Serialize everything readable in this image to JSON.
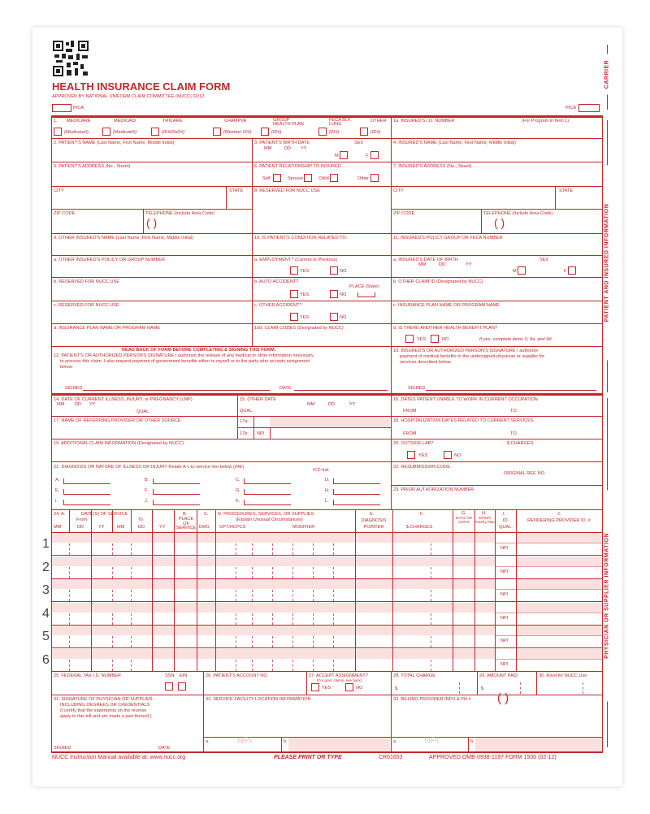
{
  "title": "HEALTH INSURANCE CLAIM FORM",
  "approved": "APPROVED BY NATIONAL UNIFORM CLAIM COMMITTEE (NUCC) 02/12",
  "pica": "PICA",
  "side": {
    "carrier": "CARRIER",
    "patient": "PATIENT AND INSURED INFORMATION",
    "physician": "PHYSICIAN OR SUPPLIER INFORMATION"
  },
  "colors": {
    "form_red": "#c0282d",
    "shade_pink": "#fbe0e0"
  },
  "item1": {
    "label": "1.",
    "programs": [
      {
        "name": "MEDICARE",
        "sub": "(Medicare#)"
      },
      {
        "name": "MEDICAID",
        "sub": "(Medicaid#)"
      },
      {
        "name": "TRICARE",
        "sub": "(ID#/DoD#)"
      },
      {
        "name": "CHAMPVA",
        "sub": "(Member ID#)"
      },
      {
        "name": "GROUP HEALTH PLAN",
        "sub": "(ID#)"
      },
      {
        "name": "FECA BLK LUNG",
        "sub": "(ID#)"
      },
      {
        "name": "OTHER",
        "sub": "(ID#)"
      }
    ]
  },
  "l": {
    "1a": "1a. INSURED'S I.D. NUMBER",
    "1a_note": "(For Program in Item 1)",
    "2": "2. PATIENT'S NAME (Last Name, First Name, Middle Initial)",
    "3": "3. PATIENT'S BIRTH DATE",
    "mm": "MM",
    "dd": "DD",
    "yy": "YY",
    "sex": "SEX",
    "m": "M",
    "f": "F",
    "4": "4. INSURED'S NAME (Last Name, First Name, Middle Initial)",
    "5": "5. PATIENT'S ADDRESS (No., Street)",
    "6": "6. PATIENT RELATIONSHIP TO INSURED",
    "self": "Self",
    "spouse": "Spouse",
    "child": "Child",
    "other": "Other",
    "7": "7. INSURED'S ADDRESS (No., Street)",
    "city": "CITY",
    "state": "STATE",
    "8": "8. RESERVED FOR NUCC USE",
    "zip": "ZIP CODE",
    "tel": "TELEPHONE (Include Area Code)",
    "paren": "(     )",
    "9": "9. OTHER INSURED'S NAME (Last Name, First Name, Middle Initial)",
    "10": "10. IS PATIENT'S CONDITION RELATED TO:",
    "11": "11. INSURED'S POLICY GROUP OR FECA NUMBER",
    "9a": "a. OTHER INSURED'S POLICY OR GROUP NUMBER",
    "10a": "a. EMPLOYMENT? (Current or Previous)",
    "yes": "YES",
    "no": "NO",
    "11a": "a. INSURED'S DATE OF BIRTH",
    "9b": "b. RESERVED FOR NUCC USE",
    "10b": "b. AUTO ACCIDENT?",
    "place": "PLACE (State)",
    "11b": "b. OTHER CLAIM ID (Designated by NUCC)",
    "9c": "c. RESERVED FOR NUCC USE",
    "10c": "c. OTHER ACCIDENT?",
    "11c": "c. INSURANCE PLAN NAME OR PROGRAM NAME",
    "9d": "d. INSURANCE PLAN NAME OR PROGRAM NAME",
    "10d": "10d. CLAIM CODES (Designated by NUCC)",
    "11d": "d. IS THERE ANOTHER HEALTH BENEFIT PLAN?",
    "11d_note": "If yes, complete items 9, 9a, and 9d.",
    "readback": "READ BACK OF FORM BEFORE COMPLETING & SIGNING THIS FORM.",
    "12": "12. PATIENT'S OR AUTHORIZED PERSON'S SIGNATURE  I authorize the release of any medical or other information necessary",
    "12b": "to process this claim. I also request payment of government benefits either to myself or to the party who accepts assignment",
    "12c": "below.",
    "signed": "SIGNED",
    "date": "DATE",
    "13": "13. INSURED'S OR AUTHORIZED PERSON'S SIGNATURE  I authorize",
    "13b": "payment of medical benefits to the undersigned physician or supplier for",
    "13c": "services described below.",
    "14": "14. DATE OF CURRENT ILLNESS, INJURY, or PREGNANCY (LMP)",
    "qual": "QUAL.",
    "15": "15. OTHER DATE",
    "16": "16. DATES PATIENT UNABLE TO WORK IN CURRENT OCCUPATION",
    "from": "FROM",
    "to": "TO",
    "17": "17. NAME OF REFERRING PROVIDER OR OTHER SOURCE",
    "17a": "17a.",
    "17b": "17b.",
    "npi": "NPI",
    "18": "18. HOSPITALIZATION DATES RELATED TO CURRENT SERVICES",
    "19": "19. ADDITIONAL CLAIM INFORMATION (Designated by NUCC)",
    "20": "20. OUTSIDE LAB?",
    "charges": "$ CHARGES",
    "21": "21. DIAGNOSIS OR NATURE OF ILLNESS OR INJURY  Relate A-L to service line below (24E)",
    "icd": "ICD Ind.",
    "22": "22. RESUBMISSION CODE",
    "orig": "ORIGINAL REF. NO.",
    "23": "23. PRIOR AUTHORIZATION NUMBER",
    "25": "25. FEDERAL TAX I.D. NUMBER",
    "ssn": "SSN",
    "ein": "EIN",
    "26": "26. PATIENT'S ACCOUNT NO.",
    "27": "27. ACCEPT ASSIGNMENT?",
    "27n": "(For govt. claims, see back)",
    "28": "28. TOTAL CHARGE",
    "29": "29. AMOUNT PAID",
    "30": "30. Rsvd for NUCC Use",
    "dollar": "$",
    "31": "31. SIGNATURE OF PHYSICIAN OR SUPPLIER",
    "31b": "INCLUDING DEGREES OR CREDENTIALS",
    "31c": "(I certify that the statements on the reverse",
    "31d": "apply to this bill and are made a part thereof.)",
    "32": "32. SERVICE FACILITY LOCATION INFORMATION",
    "33": "33. BILLING PROVIDER INFO & PH #",
    "a": "a.",
    "b": "b."
  },
  "diag": [
    "A.",
    "B.",
    "C.",
    "D.",
    "E.",
    "F.",
    "G.",
    "H.",
    "I.",
    "J.",
    "K.",
    "L."
  ],
  "h24": {
    "a": "24. A.",
    "dates": "DATE(S) OF SERVICE",
    "from": "From",
    "to": "To",
    "b": "B.",
    "pos": "PLACE OF SERVICE",
    "c": "C.",
    "emg": "EMG",
    "d": "D. PROCEDURES, SERVICES, OR SUPPLIES",
    "d2": "(Explain Unusual Circumstances)",
    "cpt": "CPT/HCPCS",
    "mod": "MODIFIER",
    "e": "E.",
    "diagp": "DIAGNOSIS POINTER",
    "f": "F.",
    "fch": "$ CHARGES",
    "g": "G.",
    "days": "DAYS OR UNITS",
    "h": "H.",
    "epsdt": "EPSDT Family Plan",
    "i": "I.",
    "idq": "ID. QUAL.",
    "j": "J.",
    "rend": "RENDERING PROVIDER ID. #"
  },
  "lines": [
    "1",
    "2",
    "3",
    "4",
    "5",
    "6"
  ],
  "footer": {
    "left": "NUCC Instruction Manual available at: www.nucc.org",
    "center": "PLEASE PRINT OR TYPE",
    "code": "CR61653",
    "right": "APPROVED OMB-0938-1197 FORM 1500 (02-12)"
  }
}
